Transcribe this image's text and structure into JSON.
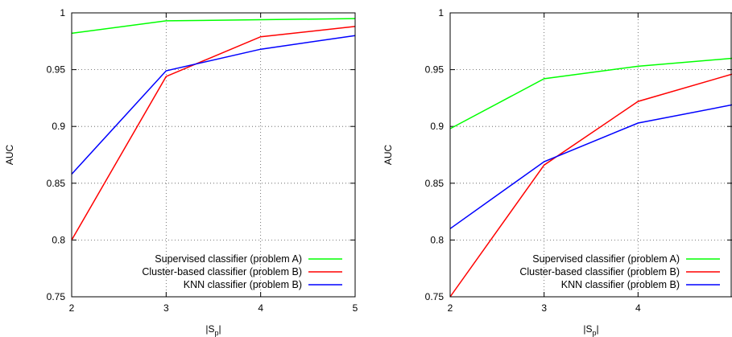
{
  "chart_data": [
    {
      "type": "line",
      "xlabel_base": "|S",
      "xlabel_sub": "p",
      "xlabel_tail": "|",
      "ylabel": "AUC",
      "x": [
        2,
        3,
        4,
        5
      ],
      "xlim": [
        2,
        5
      ],
      "ylim": [
        0.75,
        1
      ],
      "xticks": [
        "2",
        "3",
        "4",
        "5"
      ],
      "yticks": [
        "0.75",
        "0.8",
        "0.85",
        "0.9",
        "0.95",
        "1"
      ],
      "grid": true,
      "legend_position": "bottom-right",
      "series": [
        {
          "name": "Supervised classifier (problem A)",
          "color": "#00ff00",
          "values": [
            0.982,
            0.993,
            0.994,
            0.995
          ]
        },
        {
          "name": "Cluster-based classifier (problem B)",
          "color": "#ff0000",
          "values": [
            0.8,
            0.944,
            0.979,
            0.988
          ]
        },
        {
          "name": "KNN classifier (problem B)",
          "color": "#0000ff",
          "values": [
            0.858,
            0.949,
            0.968,
            0.98
          ]
        }
      ]
    },
    {
      "type": "line",
      "xlabel_base": "|S",
      "xlabel_sub": "p",
      "xlabel_tail": "|",
      "ylabel": "AUC",
      "x": [
        2,
        3,
        4,
        5
      ],
      "xlim": [
        2,
        5
      ],
      "ylim": [
        0.75,
        1
      ],
      "xticks": [
        "2",
        "3",
        "4"
      ],
      "yticks": [
        "0.75",
        "0.8",
        "0.85",
        "0.9",
        "0.95",
        "1"
      ],
      "grid": true,
      "legend_position": "bottom-right",
      "series": [
        {
          "name": "Supervised classifier (problem A)",
          "color": "#00ff00",
          "values": [
            0.898,
            0.942,
            0.953,
            0.96
          ]
        },
        {
          "name": "Cluster-based classifier (problem B)",
          "color": "#ff0000",
          "values": [
            0.75,
            0.866,
            0.922,
            0.946
          ]
        },
        {
          "name": "KNN classifier (problem B)",
          "color": "#0000ff",
          "values": [
            0.81,
            0.869,
            0.903,
            0.919
          ]
        }
      ]
    }
  ]
}
